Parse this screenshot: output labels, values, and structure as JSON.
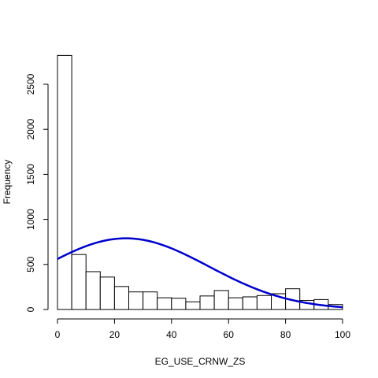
{
  "chart_data": {
    "type": "bar",
    "subtype": "histogram",
    "title": "",
    "xlabel": "EG_USE_CRNW_ZS",
    "ylabel": "Frequency",
    "xlim": [
      0,
      100
    ],
    "ylim": [
      0,
      2800
    ],
    "xticks": [
      0,
      20,
      40,
      60,
      80,
      100
    ],
    "yticks": [
      0,
      500,
      1000,
      1500,
      2000,
      2500
    ],
    "bin_width": 5,
    "bins": [
      {
        "x0": 0,
        "x1": 5,
        "value": 2820
      },
      {
        "x0": 5,
        "x1": 10,
        "value": 610
      },
      {
        "x0": 10,
        "x1": 15,
        "value": 420
      },
      {
        "x0": 15,
        "x1": 20,
        "value": 360
      },
      {
        "x0": 20,
        "x1": 25,
        "value": 255
      },
      {
        "x0": 25,
        "x1": 30,
        "value": 195
      },
      {
        "x0": 30,
        "x1": 35,
        "value": 195
      },
      {
        "x0": 35,
        "x1": 40,
        "value": 130
      },
      {
        "x0": 40,
        "x1": 45,
        "value": 125
      },
      {
        "x0": 45,
        "x1": 50,
        "value": 85
      },
      {
        "x0": 50,
        "x1": 55,
        "value": 150
      },
      {
        "x0": 55,
        "x1": 60,
        "value": 210
      },
      {
        "x0": 60,
        "x1": 65,
        "value": 130
      },
      {
        "x0": 65,
        "x1": 70,
        "value": 140
      },
      {
        "x0": 70,
        "x1": 75,
        "value": 155
      },
      {
        "x0": 75,
        "x1": 80,
        "value": 175
      },
      {
        "x0": 80,
        "x1": 85,
        "value": 230
      },
      {
        "x0": 85,
        "x1": 90,
        "value": 100
      },
      {
        "x0": 90,
        "x1": 95,
        "value": 110
      },
      {
        "x0": 95,
        "x1": 100,
        "value": 55
      }
    ],
    "curve": {
      "type": "normal-density",
      "color": "#0000cc",
      "mean": 24,
      "sd": 29,
      "peak": 790
    }
  }
}
